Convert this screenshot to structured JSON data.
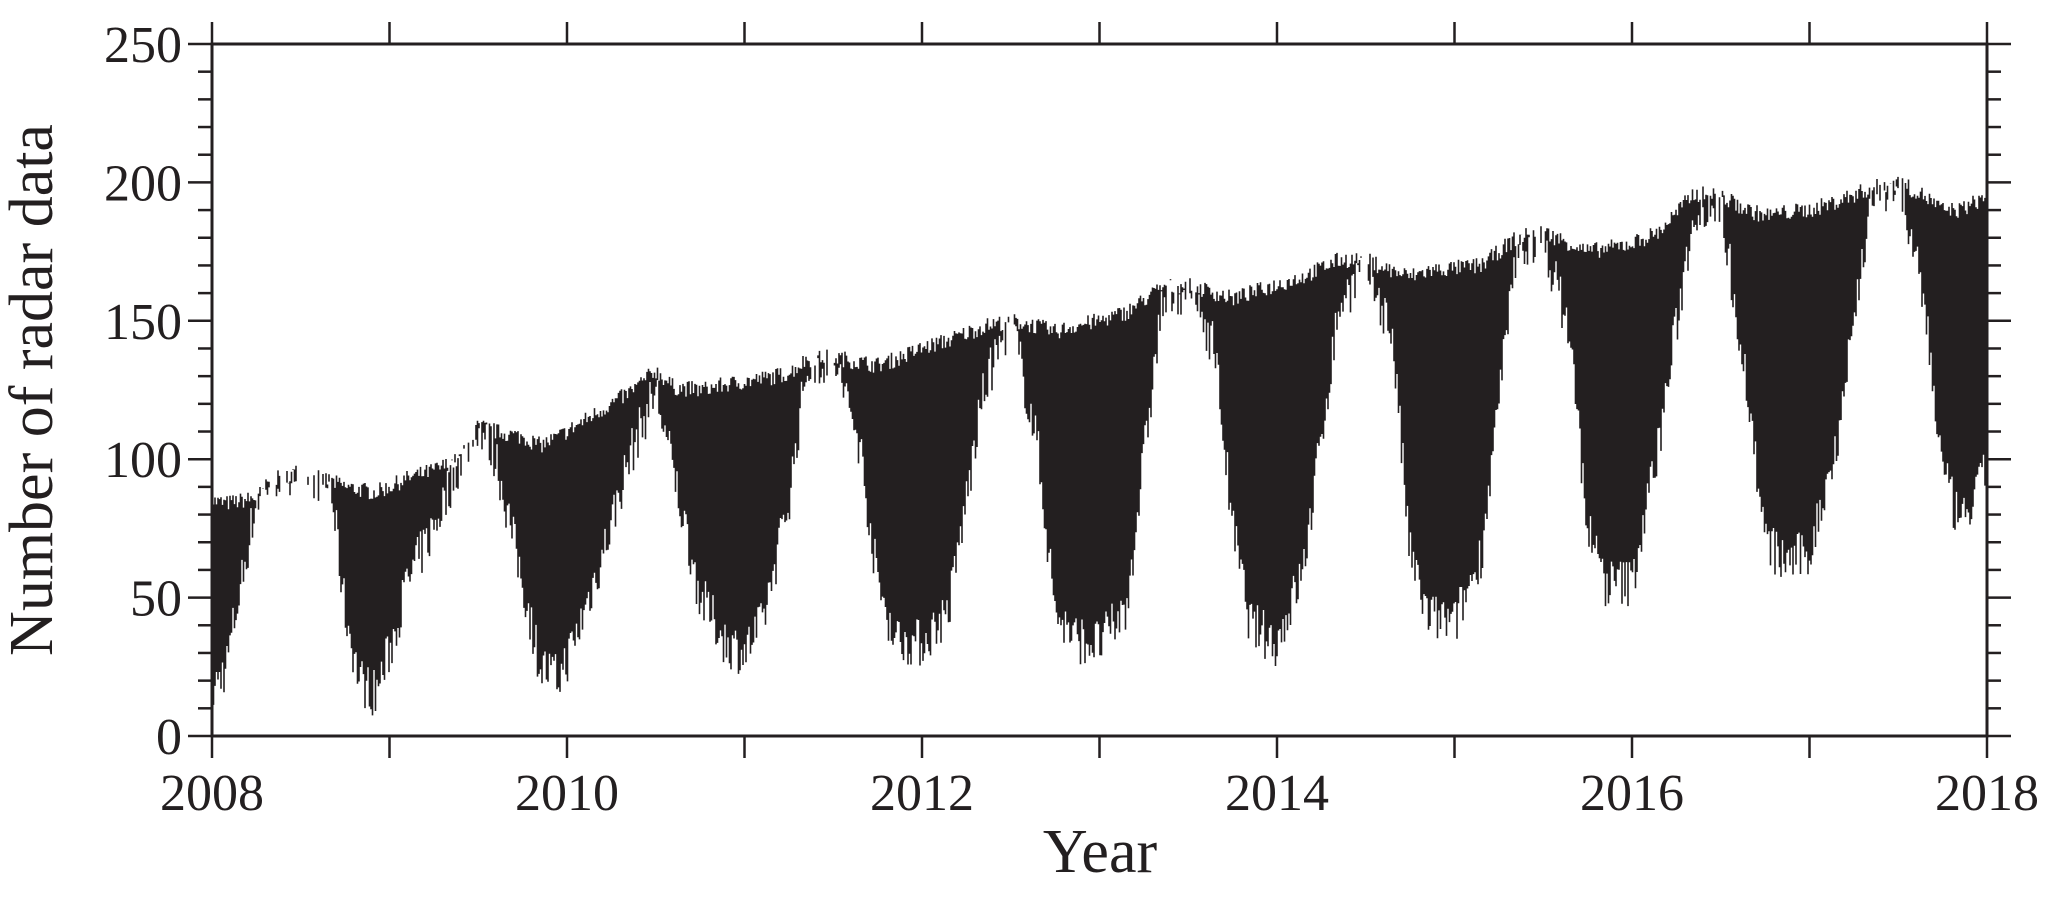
{
  "chart_data": {
    "type": "area",
    "xlabel": "Year",
    "ylabel": "Number of radar data",
    "xlim": [
      2008,
      2018
    ],
    "ylim": [
      0,
      250
    ],
    "x_ticks": [
      "2008",
      "2010",
      "2012",
      "2014",
      "2016",
      "2018"
    ],
    "y_ticks": [
      "0",
      "50",
      "100",
      "150",
      "200",
      "250"
    ],
    "grid": false,
    "legend": "none",
    "color": "#231f20",
    "series": [
      {
        "x": [
          2008.0,
          2008.08,
          2008.25,
          2008.33,
          2008.5,
          2008.67,
          2008.75,
          2008.83,
          2008.92,
          2009.0,
          2009.1,
          2009.25,
          2009.4,
          2009.5,
          2009.6,
          2009.75,
          2009.85,
          2009.95,
          2010.05,
          2010.2,
          2010.35,
          2010.5,
          2010.6,
          2010.75,
          2010.9,
          2011.0,
          2011.1,
          2011.25,
          2011.35,
          2011.5,
          2011.65,
          2011.75,
          2011.85,
          2012.0,
          2012.15,
          2012.35,
          2012.5,
          2012.65,
          2012.75,
          2012.85,
          2013.0,
          2013.15,
          2013.35,
          2013.5,
          2013.65,
          2013.75,
          2013.85,
          2014.0,
          2014.15,
          2014.35,
          2014.5,
          2014.65,
          2014.75,
          2014.85,
          2015.0,
          2015.15,
          2015.35,
          2015.5,
          2015.65,
          2015.75,
          2015.85,
          2016.0,
          2016.15,
          2016.35,
          2016.5,
          2016.65,
          2016.75,
          2016.85,
          2017.0,
          2017.15,
          2017.35,
          2017.5,
          2017.65,
          2017.75,
          2017.85,
          2018.0
        ],
        "y_max": [
          85,
          84,
          86,
          92,
          96,
          92,
          90,
          89,
          88,
          90,
          93,
          96,
          100,
          112,
          110,
          108,
          105,
          108,
          112,
          118,
          124,
          132,
          126,
          125,
          127,
          128,
          129,
          131,
          136,
          137,
          135,
          134,
          136,
          140,
          143,
          148,
          150,
          148,
          146,
          148,
          150,
          153,
          162,
          163,
          160,
          158,
          160,
          163,
          166,
          172,
          172,
          168,
          166,
          168,
          169,
          170,
          180,
          182,
          178,
          175,
          176,
          178,
          182,
          196,
          195,
          190,
          188,
          189,
          190,
          193,
          198,
          200,
          195,
          190,
          190,
          195
        ],
        "y_min": [
          10,
          20,
          80,
          88,
          92,
          85,
          40,
          15,
          10,
          25,
          50,
          70,
          95,
          108,
          95,
          50,
          20,
          15,
          30,
          60,
          95,
          120,
          90,
          45,
          28,
          25,
          35,
          80,
          128,
          132,
          100,
          50,
          30,
          28,
          40,
          120,
          146,
          100,
          40,
          30,
          28,
          40,
          150,
          158,
          135,
          70,
          35,
          28,
          55,
          150,
          165,
          140,
          60,
          38,
          35,
          60,
          170,
          175,
          140,
          70,
          50,
          50,
          100,
          185,
          188,
          120,
          65,
          58,
          60,
          100,
          190,
          195,
          150,
          90,
          70,
          90
        ]
      }
    ]
  }
}
